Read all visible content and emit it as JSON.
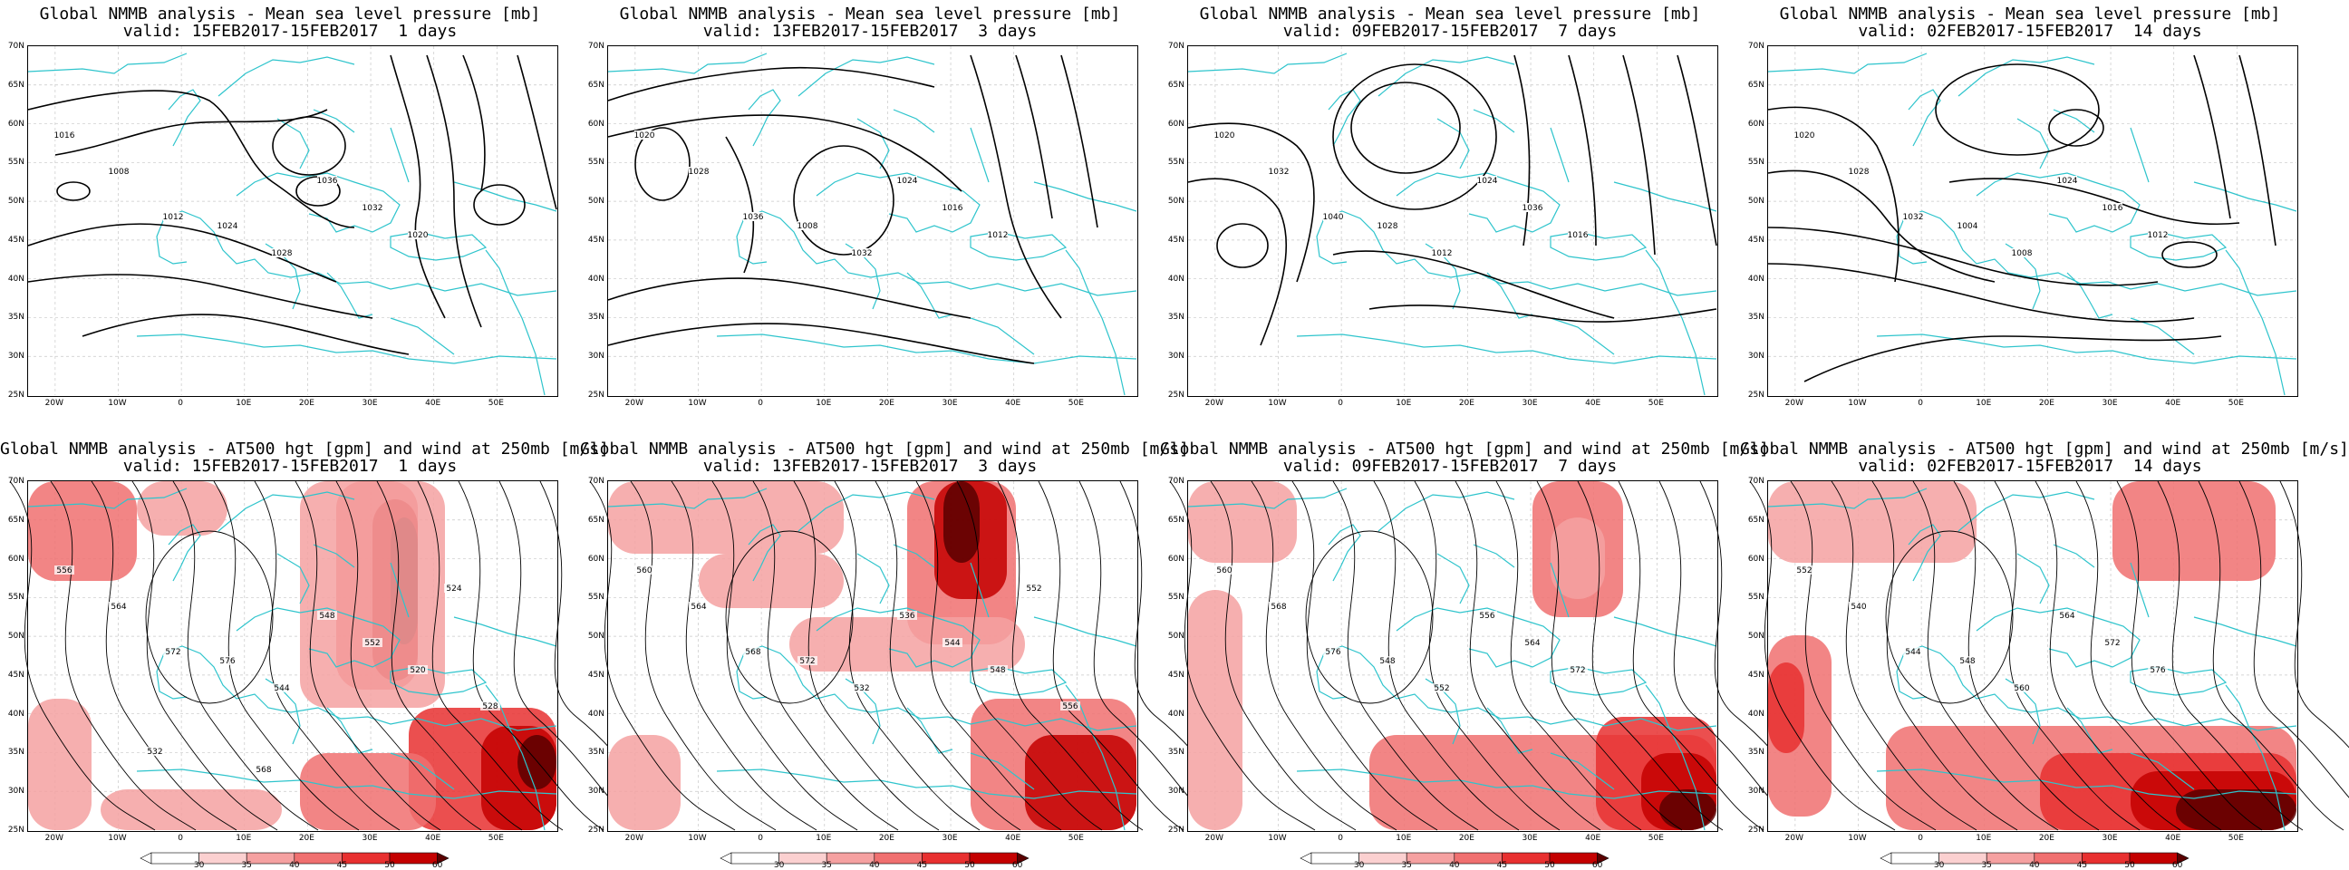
{
  "panels": [
    {
      "title1": "Global NMMB analysis - Mean sea level pressure [mb]",
      "title2": "valid: 15FEB2017-15FEB2017  1 days"
    },
    {
      "title1": "Global NMMB analysis - Mean sea level pressure [mb]",
      "title2": "valid: 13FEB2017-15FEB2017  3 days"
    },
    {
      "title1": "Global NMMB analysis - Mean sea level pressure [mb]",
      "title2": "valid: 09FEB2017-15FEB2017  7 days"
    },
    {
      "title1": "Global NMMB analysis - Mean sea level pressure [mb]",
      "title2": "valid: 02FEB2017-15FEB2017  14 days"
    },
    {
      "title1": "Global NMMB analysis - AT500 hgt [gpm] and wind at 250mb [m/s]",
      "title2": "valid: 15FEB2017-15FEB2017  1 days"
    },
    {
      "title1": "Global NMMB analysis - AT500 hgt [gpm] and wind at 250mb [m/s]",
      "title2": "valid: 13FEB2017-15FEB2017  3 days"
    },
    {
      "title1": "Global NMMB analysis - AT500 hgt [gpm] and wind at 250mb [m/s]",
      "title2": "valid: 09FEB2017-15FEB2017  7 days"
    },
    {
      "title1": "Global NMMB analysis - AT500 hgt [gpm] and wind at 250mb [m/s]",
      "title2": "valid: 02FEB2017-15FEB2017  14 days"
    }
  ],
  "lat_labels": [
    "70N",
    "65N",
    "60N",
    "55N",
    "50N",
    "45N",
    "40N",
    "35N",
    "30N",
    "25N"
  ],
  "lon_labels": [
    "20W",
    "10W",
    "0",
    "10E",
    "20E",
    "30E",
    "40E",
    "50E"
  ],
  "colorbar_labels": [
    "30",
    "35",
    "40",
    "45",
    "50",
    "60"
  ],
  "contours": {
    "mslp": [
      [
        "1016",
        "1008",
        "1012",
        "1024",
        "1028",
        "1036",
        "1032",
        "1020"
      ],
      [
        "1020",
        "1028",
        "1036",
        "1008",
        "1032",
        "1024",
        "1016",
        "1012"
      ],
      [
        "1020",
        "1032",
        "1040",
        "1028",
        "1012",
        "1024",
        "1036",
        "1016"
      ],
      [
        "1020",
        "1028",
        "1032",
        "1004",
        "1008",
        "1024",
        "1016",
        "1012"
      ]
    ],
    "z500": [
      [
        "556",
        "564",
        "572",
        "576",
        "544",
        "548",
        "552",
        "520",
        "524",
        "528",
        "532",
        "568"
      ],
      [
        "560",
        "564",
        "568",
        "572",
        "532",
        "536",
        "544",
        "548",
        "552",
        "556"
      ],
      [
        "560",
        "568",
        "576",
        "548",
        "552",
        "556",
        "564",
        "572"
      ],
      [
        "552",
        "540",
        "544",
        "548",
        "560",
        "564",
        "572",
        "576"
      ]
    ]
  },
  "colors": {
    "coast": "#2ec4cc",
    "contour": "#000000",
    "wind_shades": [
      "#ffffff",
      "#fbd0d0",
      "#f5a1a1",
      "#f07070",
      "#e83030",
      "#c40000",
      "#5a0000"
    ]
  }
}
